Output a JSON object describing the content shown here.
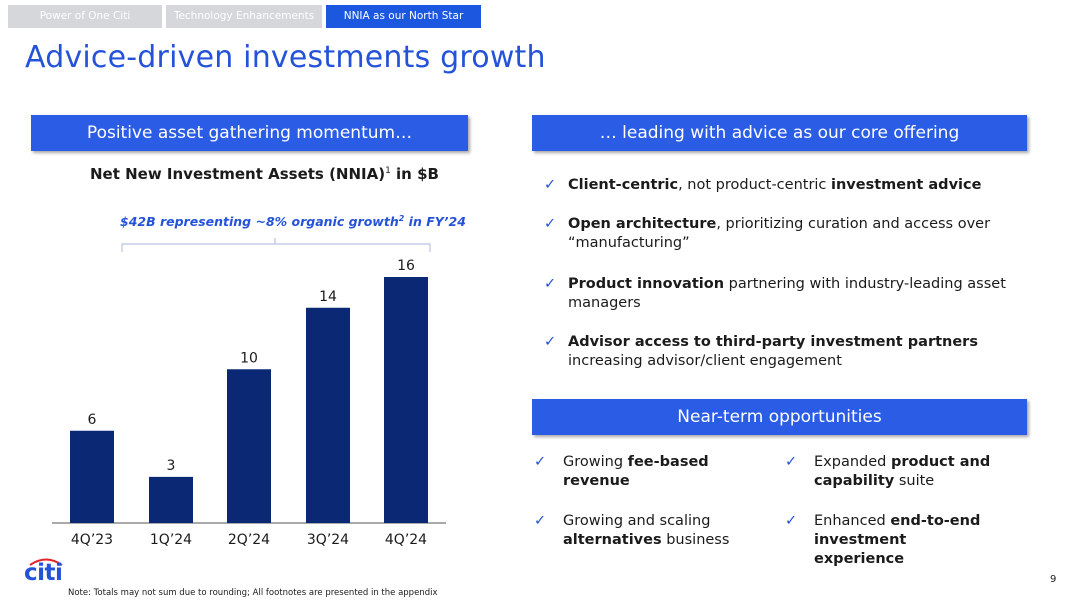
{
  "tabs": [
    "Power of One Citi",
    "Technology Enhancements",
    "NNIA as our North Star"
  ],
  "title": "Advice-driven investments growth",
  "left_banner": "Positive asset gathering momentum…",
  "right_banner": "… leading with advice as our core offering",
  "chart_heading": {
    "main": "Net New Investment Assets (NNIA)",
    "sup": "1",
    "suffix": " in $B"
  },
  "annotation": {
    "part1": "$42B representing ~8% organic growth",
    "sup": "2",
    "part2": " in FY’24"
  },
  "chart_data": {
    "type": "bar",
    "title": "Net New Investment Assets (NNIA)1 in $B",
    "categories": [
      "4Q’23",
      "1Q’24",
      "2Q’24",
      "3Q’24",
      "4Q’24"
    ],
    "values": [
      6,
      3,
      10,
      14,
      16
    ],
    "ylim": [
      0,
      16
    ],
    "bar_color": "#0a2873",
    "grid": false,
    "annotation": "$42B representing ~8% organic growth2 in FY’24"
  },
  "advice_bullets": [
    {
      "bold": "Client-centric",
      "text": ", not product-centric ",
      "bold2": "investment advice",
      "text2": ""
    },
    {
      "bold": "Open architecture",
      "text": ", prioritizing curation and access over “manufacturing”",
      "bold2": "",
      "text2": ""
    },
    {
      "bold": "Product innovation",
      "text": " partnering with industry-leading asset managers",
      "bold2": "",
      "text2": ""
    },
    {
      "bold": "Advisor access to third-party investment partners",
      "text": " increasing advisor/client engagement",
      "bold2": "",
      "text2": ""
    }
  ],
  "opportunities_banner": "Near-term opportunities",
  "opportunities": [
    {
      "pre": "Growing ",
      "bold": "fee-based revenue",
      "post": ""
    },
    {
      "pre": "Expanded ",
      "bold": "product and capability",
      "post": " suite"
    },
    {
      "pre": "Growing and scaling ",
      "bold": "alternatives",
      "post": " business"
    },
    {
      "pre": "Enhanced ",
      "bold": "end-to-end investment experience",
      "post": ""
    }
  ],
  "check_glyph": "✓",
  "logo": "citi",
  "note": "Note:  Totals may not sum due to rounding; All footnotes are presented in the appendix",
  "page_number": "9",
  "colors": {
    "accent": "#2453d9",
    "banner": "#2a5ce6",
    "bar": "#0a2873",
    "tab_inactive": "#d6d7db",
    "tab_active": "#1c57e0"
  }
}
